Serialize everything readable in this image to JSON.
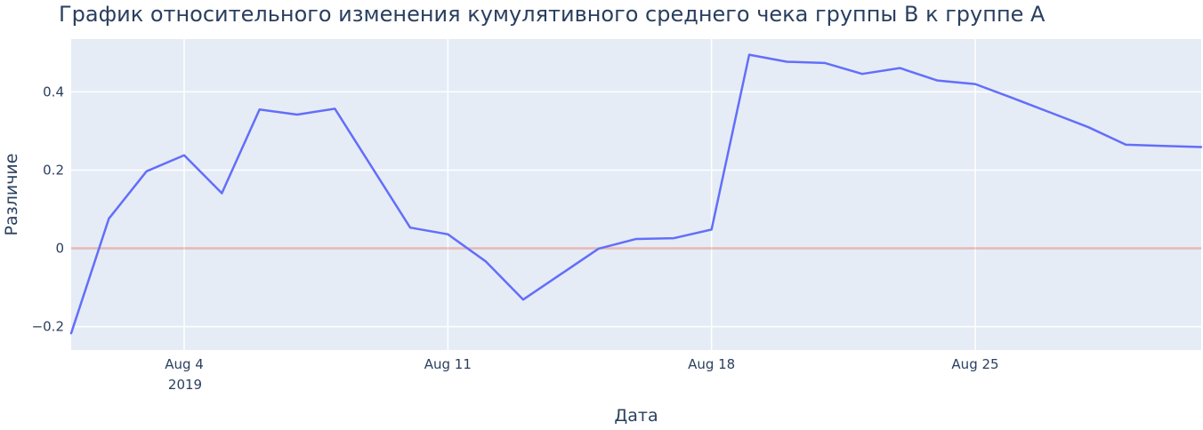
{
  "chart_data": {
    "type": "line",
    "title": "График относительного изменения кумулятивного среднего чека группы В к группе А",
    "xlabel": "Дата",
    "ylabel": "Различие",
    "x_year_label": "2019",
    "x": [
      "2019-08-01",
      "2019-08-02",
      "2019-08-03",
      "2019-08-04",
      "2019-08-05",
      "2019-08-06",
      "2019-08-07",
      "2019-08-08",
      "2019-08-09",
      "2019-08-10",
      "2019-08-11",
      "2019-08-12",
      "2019-08-13",
      "2019-08-14",
      "2019-08-15",
      "2019-08-16",
      "2019-08-17",
      "2019-08-18",
      "2019-08-19",
      "2019-08-20",
      "2019-08-21",
      "2019-08-22",
      "2019-08-23",
      "2019-08-24",
      "2019-08-25",
      "2019-08-26",
      "2019-08-27",
      "2019-08-28",
      "2019-08-29",
      "2019-08-30",
      "2019-08-31"
    ],
    "series": [
      {
        "values": [
          -0.217,
          0.076,
          0.197,
          0.238,
          0.141,
          0.355,
          0.342,
          0.357,
          0.205,
          0.053,
          0.036,
          -0.033,
          -0.131,
          -0.066,
          -0.001,
          0.024,
          0.026,
          0.048,
          0.495,
          0.477,
          0.474,
          0.446,
          0.461,
          0.429,
          0.42,
          0.384,
          0.347,
          0.31,
          0.265,
          0.262,
          0.259
        ],
        "color": "#636efa"
      }
    ],
    "reference_line": {
      "y": 0,
      "color": "#ef553b",
      "opacity": 0.35
    },
    "x_ticks": [
      {
        "date": "2019-08-04",
        "label": "Aug 4"
      },
      {
        "date": "2019-08-11",
        "label": "Aug 11"
      },
      {
        "date": "2019-08-18",
        "label": "Aug 18"
      },
      {
        "date": "2019-08-25",
        "label": "Aug 25"
      }
    ],
    "y_ticks": [
      {
        "value": -0.2,
        "label": "−0.2"
      },
      {
        "value": 0,
        "label": "0"
      },
      {
        "value": 0.2,
        "label": "0.2"
      },
      {
        "value": 0.4,
        "label": "0.4"
      }
    ],
    "xlim": [
      "2019-08-01",
      "2019-08-31"
    ],
    "ylim": [
      -0.26,
      0.535
    ],
    "grid": true,
    "legend": "none",
    "colors": {
      "plot_background": "#e5ecf6",
      "grid": "#ffffff",
      "text": "#2a3f5f"
    }
  }
}
